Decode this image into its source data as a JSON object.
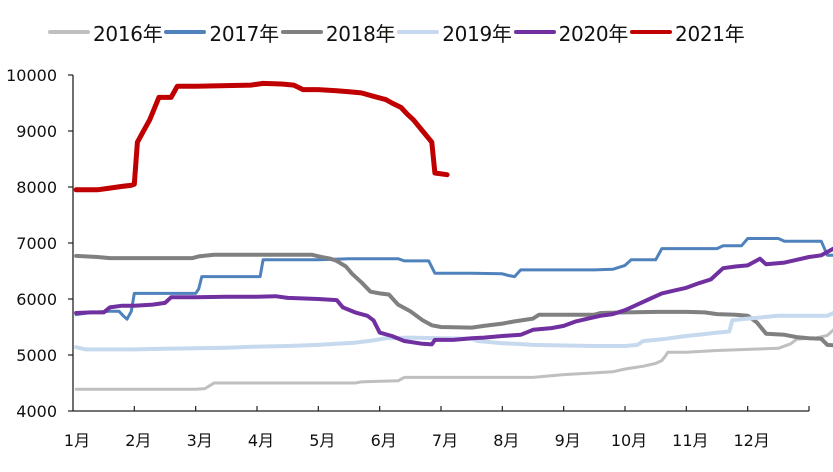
{
  "chart_data": {
    "type": "line",
    "title": "",
    "xlabel": "",
    "ylabel": "",
    "ylim": [
      4000,
      10000
    ],
    "yticks": [
      4000,
      5000,
      6000,
      7000,
      8000,
      9000,
      10000
    ],
    "categories": [
      "1月",
      "2月",
      "3月",
      "4月",
      "5月",
      "6月",
      "7月",
      "8月",
      "9月",
      "10月",
      "11月",
      "12月"
    ],
    "grid": false,
    "legend_position": "top",
    "series": [
      {
        "name": "2016年",
        "color": "#bfbfbf",
        "width": 3,
        "points": [
          [
            0.05,
            4390
          ],
          [
            1.0,
            4390
          ],
          [
            2.0,
            4390
          ],
          [
            2.15,
            4400
          ],
          [
            2.3,
            4500
          ],
          [
            3.0,
            4500
          ],
          [
            4.0,
            4500
          ],
          [
            4.6,
            4500
          ],
          [
            4.7,
            4520
          ],
          [
            5.0,
            4530
          ],
          [
            5.3,
            4540
          ],
          [
            5.4,
            4600
          ],
          [
            6.0,
            4600
          ],
          [
            7.0,
            4600
          ],
          [
            7.5,
            4600
          ],
          [
            7.7,
            4620
          ],
          [
            8.0,
            4650
          ],
          [
            8.5,
            4680
          ],
          [
            8.8,
            4700
          ],
          [
            9.0,
            4750
          ],
          [
            9.3,
            4800
          ],
          [
            9.5,
            4850
          ],
          [
            9.6,
            4900
          ],
          [
            9.65,
            4970
          ],
          [
            9.7,
            5050
          ],
          [
            10.0,
            5050
          ],
          [
            10.5,
            5080
          ],
          [
            11.0,
            5100
          ],
          [
            11.5,
            5120
          ],
          [
            11.7,
            5200
          ],
          [
            11.8,
            5280
          ],
          [
            12.0,
            5300
          ],
          [
            12.1,
            5300
          ],
          [
            12.3,
            5350
          ],
          [
            12.4,
            5450
          ],
          [
            12.8,
            5480
          ]
        ]
      },
      {
        "name": "2017年",
        "color": "#4f81bd",
        "width": 3,
        "points": [
          [
            0.05,
            5720
          ],
          [
            0.3,
            5760
          ],
          [
            0.6,
            5780
          ],
          [
            0.75,
            5780
          ],
          [
            0.82,
            5700
          ],
          [
            0.88,
            5640
          ],
          [
            0.95,
            5780
          ],
          [
            1.0,
            6100
          ],
          [
            1.5,
            6100
          ],
          [
            2.0,
            6100
          ],
          [
            2.05,
            6180
          ],
          [
            2.1,
            6400
          ],
          [
            2.5,
            6400
          ],
          [
            3.0,
            6400
          ],
          [
            3.05,
            6400
          ],
          [
            3.1,
            6700
          ],
          [
            3.5,
            6700
          ],
          [
            4.0,
            6700
          ],
          [
            4.5,
            6720
          ],
          [
            5.0,
            6720
          ],
          [
            5.3,
            6720
          ],
          [
            5.4,
            6680
          ],
          [
            5.8,
            6680
          ],
          [
            5.9,
            6460
          ],
          [
            6.0,
            6460
          ],
          [
            6.5,
            6460
          ],
          [
            7.0,
            6450
          ],
          [
            7.1,
            6420
          ],
          [
            7.2,
            6400
          ],
          [
            7.3,
            6520
          ],
          [
            7.5,
            6520
          ],
          [
            8.0,
            6520
          ],
          [
            8.5,
            6520
          ],
          [
            8.8,
            6530
          ],
          [
            9.0,
            6600
          ],
          [
            9.1,
            6700
          ],
          [
            9.5,
            6700
          ],
          [
            9.6,
            6900
          ],
          [
            10.0,
            6900
          ],
          [
            10.5,
            6900
          ],
          [
            10.6,
            6950
          ],
          [
            10.9,
            6950
          ],
          [
            11.0,
            7080
          ],
          [
            11.5,
            7080
          ],
          [
            11.6,
            7030
          ],
          [
            12.0,
            7030
          ],
          [
            12.2,
            7030
          ],
          [
            12.3,
            6780
          ],
          [
            12.8,
            6780
          ]
        ]
      },
      {
        "name": "2018年",
        "color": "#808080",
        "width": 4,
        "points": [
          [
            0.05,
            6770
          ],
          [
            0.4,
            6750
          ],
          [
            0.6,
            6730
          ],
          [
            1.0,
            6730
          ],
          [
            1.5,
            6730
          ],
          [
            1.95,
            6730
          ],
          [
            2.05,
            6760
          ],
          [
            2.3,
            6790
          ],
          [
            3.0,
            6790
          ],
          [
            3.5,
            6790
          ],
          [
            3.9,
            6790
          ],
          [
            4.05,
            6750
          ],
          [
            4.2,
            6720
          ],
          [
            4.3,
            6680
          ],
          [
            4.45,
            6580
          ],
          [
            4.55,
            6450
          ],
          [
            4.7,
            6300
          ],
          [
            4.85,
            6130
          ],
          [
            5.0,
            6100
          ],
          [
            5.15,
            6080
          ],
          [
            5.3,
            5900
          ],
          [
            5.5,
            5780
          ],
          [
            5.7,
            5620
          ],
          [
            5.85,
            5530
          ],
          [
            6.0,
            5500
          ],
          [
            6.5,
            5490
          ],
          [
            6.7,
            5520
          ],
          [
            7.0,
            5560
          ],
          [
            7.2,
            5600
          ],
          [
            7.5,
            5650
          ],
          [
            7.6,
            5720
          ],
          [
            8.0,
            5720
          ],
          [
            8.5,
            5720
          ],
          [
            8.6,
            5750
          ],
          [
            9.0,
            5760
          ],
          [
            9.5,
            5770
          ],
          [
            10.0,
            5770
          ],
          [
            10.3,
            5760
          ],
          [
            10.5,
            5730
          ],
          [
            10.8,
            5720
          ],
          [
            11.0,
            5700
          ],
          [
            11.15,
            5580
          ],
          [
            11.3,
            5380
          ],
          [
            11.6,
            5360
          ],
          [
            11.8,
            5320
          ],
          [
            12.0,
            5300
          ],
          [
            12.2,
            5290
          ],
          [
            12.3,
            5180
          ],
          [
            12.7,
            5150
          ]
        ]
      },
      {
        "name": "2019年",
        "color": "#c6d9ee",
        "width": 4,
        "points": [
          [
            0.05,
            5140
          ],
          [
            0.2,
            5100
          ],
          [
            0.5,
            5100
          ],
          [
            1.0,
            5100
          ],
          [
            1.5,
            5110
          ],
          [
            2.0,
            5120
          ],
          [
            2.5,
            5130
          ],
          [
            3.0,
            5150
          ],
          [
            3.5,
            5160
          ],
          [
            4.0,
            5180
          ],
          [
            4.3,
            5200
          ],
          [
            4.6,
            5220
          ],
          [
            4.9,
            5260
          ],
          [
            5.1,
            5300
          ],
          [
            5.5,
            5310
          ],
          [
            6.0,
            5300
          ],
          [
            6.5,
            5290
          ],
          [
            6.6,
            5250
          ],
          [
            6.8,
            5230
          ],
          [
            7.0,
            5210
          ],
          [
            7.2,
            5200
          ],
          [
            7.5,
            5180
          ],
          [
            8.0,
            5170
          ],
          [
            8.5,
            5160
          ],
          [
            9.0,
            5160
          ],
          [
            9.2,
            5180
          ],
          [
            9.3,
            5250
          ],
          [
            9.6,
            5280
          ],
          [
            10.0,
            5340
          ],
          [
            10.2,
            5360
          ],
          [
            10.5,
            5400
          ],
          [
            10.7,
            5420
          ],
          [
            10.75,
            5620
          ],
          [
            11.0,
            5650
          ],
          [
            11.5,
            5700
          ],
          [
            12.0,
            5700
          ],
          [
            12.3,
            5700
          ],
          [
            12.4,
            5750
          ],
          [
            12.8,
            5760
          ],
          [
            12.9,
            5770
          ]
        ]
      },
      {
        "name": "2020年",
        "color": "#7030a0",
        "width": 4,
        "points": [
          [
            0.05,
            5750
          ],
          [
            0.3,
            5760
          ],
          [
            0.5,
            5760
          ],
          [
            0.6,
            5850
          ],
          [
            0.8,
            5880
          ],
          [
            1.0,
            5880
          ],
          [
            1.3,
            5900
          ],
          [
            1.5,
            5930
          ],
          [
            1.6,
            6030
          ],
          [
            2.0,
            6030
          ],
          [
            2.5,
            6040
          ],
          [
            3.0,
            6040
          ],
          [
            3.3,
            6050
          ],
          [
            3.5,
            6020
          ],
          [
            4.0,
            6000
          ],
          [
            4.3,
            5980
          ],
          [
            4.4,
            5850
          ],
          [
            4.6,
            5760
          ],
          [
            4.8,
            5700
          ],
          [
            4.9,
            5620
          ],
          [
            5.0,
            5400
          ],
          [
            5.2,
            5340
          ],
          [
            5.4,
            5250
          ],
          [
            5.7,
            5200
          ],
          [
            5.85,
            5190
          ],
          [
            5.9,
            5270
          ],
          [
            6.2,
            5270
          ],
          [
            6.5,
            5300
          ],
          [
            6.7,
            5310
          ],
          [
            7.0,
            5340
          ],
          [
            7.3,
            5360
          ],
          [
            7.5,
            5450
          ],
          [
            7.8,
            5480
          ],
          [
            8.0,
            5520
          ],
          [
            8.2,
            5600
          ],
          [
            8.4,
            5650
          ],
          [
            8.6,
            5700
          ],
          [
            8.8,
            5730
          ],
          [
            9.0,
            5800
          ],
          [
            9.2,
            5900
          ],
          [
            9.4,
            6000
          ],
          [
            9.6,
            6100
          ],
          [
            9.8,
            6150
          ],
          [
            10.0,
            6200
          ],
          [
            10.2,
            6280
          ],
          [
            10.4,
            6350
          ],
          [
            10.6,
            6550
          ],
          [
            10.8,
            6580
          ],
          [
            11.0,
            6600
          ],
          [
            11.2,
            6720
          ],
          [
            11.3,
            6620
          ],
          [
            11.6,
            6650
          ],
          [
            11.8,
            6700
          ],
          [
            12.0,
            6750
          ],
          [
            12.2,
            6780
          ],
          [
            12.4,
            6900
          ],
          [
            12.6,
            6970
          ],
          [
            12.8,
            7100
          ],
          [
            12.9,
            7130
          ]
        ]
      },
      {
        "name": "2021年",
        "color": "#c00000",
        "width": 5,
        "points": [
          [
            0.05,
            7950
          ],
          [
            0.4,
            7950
          ],
          [
            0.6,
            7980
          ],
          [
            0.8,
            8010
          ],
          [
            0.95,
            8030
          ],
          [
            1.0,
            8050
          ],
          [
            1.05,
            8800
          ],
          [
            1.15,
            9000
          ],
          [
            1.25,
            9200
          ],
          [
            1.4,
            9600
          ],
          [
            1.6,
            9600
          ],
          [
            1.7,
            9800
          ],
          [
            2.0,
            9800
          ],
          [
            2.5,
            9810
          ],
          [
            2.9,
            9820
          ],
          [
            3.1,
            9850
          ],
          [
            3.4,
            9840
          ],
          [
            3.6,
            9820
          ],
          [
            3.75,
            9740
          ],
          [
            4.0,
            9740
          ],
          [
            4.3,
            9720
          ],
          [
            4.5,
            9700
          ],
          [
            4.7,
            9680
          ],
          [
            4.9,
            9620
          ],
          [
            5.1,
            9560
          ],
          [
            5.2,
            9500
          ],
          [
            5.35,
            9420
          ],
          [
            5.45,
            9300
          ],
          [
            5.55,
            9200
          ],
          [
            5.7,
            9000
          ],
          [
            5.85,
            8800
          ],
          [
            5.9,
            8250
          ],
          [
            6.1,
            8220
          ]
        ]
      }
    ]
  }
}
